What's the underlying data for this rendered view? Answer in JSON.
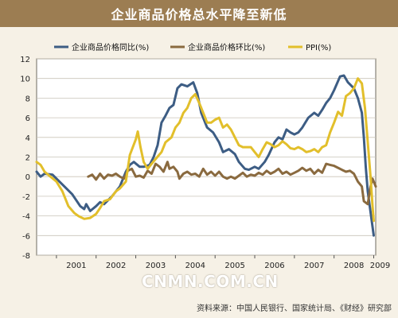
{
  "header": {
    "title": "企业商品价格总水平降至新低"
  },
  "source_text": "资料来源：中国人民银行、国家统计局、《财经》研究部",
  "watermark_text": "CNMN.COM.CN",
  "colors": {
    "header_bg": "#9c7d52",
    "background": "#f6f1e6",
    "plot_bg": "#ffffff",
    "series_yoy": "#3d5d84",
    "series_mom": "#8a6a3f",
    "series_ppi": "#e2bf2b"
  },
  "chart_data": {
    "type": "line",
    "ylim": [
      -8,
      12
    ],
    "yticks": [
      "-8",
      "-6",
      "-4",
      "-2",
      "0",
      "2",
      "4",
      "6",
      "8",
      "10",
      "12"
    ],
    "xlim": [
      2000.5,
      2009.05
    ],
    "xtick_labels": [
      {
        "label": "2001",
        "x": 2001.0
      },
      {
        "label": "2002",
        "x": 2002.0
      },
      {
        "label": "2003",
        "x": 2003.0
      },
      {
        "label": "2004",
        "x": 2004.0
      },
      {
        "label": "2005",
        "x": 2005.0
      },
      {
        "label": "2006",
        "x": 2006.0
      },
      {
        "label": "2007",
        "x": 2007.0
      },
      {
        "label": "2008",
        "x": 2008.0
      },
      {
        "label": "2009",
        "x": 2009.0
      }
    ],
    "grid": "horizontal",
    "legend_placement": "top",
    "series": [
      {
        "name": "企业商品价格同比(%)",
        "color_key": "series_yoy",
        "points": [
          [
            2000.5,
            0.5
          ],
          [
            2000.6,
            0.0
          ],
          [
            2000.7,
            0.3
          ],
          [
            2000.9,
            0.2
          ],
          [
            2001.0,
            -0.2
          ],
          [
            2001.2,
            -1.0
          ],
          [
            2001.4,
            -1.8
          ],
          [
            2001.6,
            -3.0
          ],
          [
            2001.7,
            -3.3
          ],
          [
            2001.75,
            -2.8
          ],
          [
            2001.85,
            -3.5
          ],
          [
            2002.0,
            -3.0
          ],
          [
            2002.1,
            -2.6
          ],
          [
            2002.2,
            -2.8
          ],
          [
            2002.4,
            -2.0
          ],
          [
            2002.6,
            -1.0
          ],
          [
            2002.75,
            0.5
          ],
          [
            2002.85,
            1.2
          ],
          [
            2002.95,
            1.5
          ],
          [
            2003.1,
            1.0
          ],
          [
            2003.2,
            1.0
          ],
          [
            2003.35,
            1.2
          ],
          [
            2003.45,
            2.0
          ],
          [
            2003.55,
            3.2
          ],
          [
            2003.65,
            5.5
          ],
          [
            2003.75,
            6.2
          ],
          [
            2003.85,
            7.0
          ],
          [
            2003.95,
            7.3
          ],
          [
            2004.05,
            9.0
          ],
          [
            2004.15,
            9.4
          ],
          [
            2004.3,
            9.2
          ],
          [
            2004.45,
            9.6
          ],
          [
            2004.55,
            8.5
          ],
          [
            2004.65,
            6.5
          ],
          [
            2004.8,
            5.0
          ],
          [
            2004.95,
            4.5
          ],
          [
            2005.1,
            3.5
          ],
          [
            2005.2,
            2.5
          ],
          [
            2005.35,
            2.8
          ],
          [
            2005.5,
            2.3
          ],
          [
            2005.6,
            1.5
          ],
          [
            2005.75,
            0.8
          ],
          [
            2005.85,
            0.7
          ],
          [
            2006.0,
            1.0
          ],
          [
            2006.1,
            0.8
          ],
          [
            2006.25,
            1.5
          ],
          [
            2006.35,
            2.2
          ],
          [
            2006.5,
            3.5
          ],
          [
            2006.6,
            4.0
          ],
          [
            2006.7,
            3.8
          ],
          [
            2006.8,
            4.8
          ],
          [
            2006.9,
            4.5
          ],
          [
            2007.0,
            4.3
          ],
          [
            2007.1,
            4.5
          ],
          [
            2007.2,
            5.0
          ],
          [
            2007.35,
            6.0
          ],
          [
            2007.5,
            6.5
          ],
          [
            2007.6,
            6.2
          ],
          [
            2007.7,
            6.8
          ],
          [
            2007.8,
            7.5
          ],
          [
            2007.9,
            8.0
          ],
          [
            2008.0,
            8.8
          ],
          [
            2008.15,
            10.2
          ],
          [
            2008.25,
            10.3
          ],
          [
            2008.35,
            9.6
          ],
          [
            2008.5,
            9.0
          ],
          [
            2008.6,
            8.0
          ],
          [
            2008.7,
            6.5
          ],
          [
            2008.75,
            4.0
          ],
          [
            2008.8,
            1.0
          ],
          [
            2008.85,
            -1.5
          ],
          [
            2008.9,
            -3.0
          ],
          [
            2008.95,
            -4.5
          ],
          [
            2009.0,
            -6.0
          ]
        ]
      },
      {
        "name": "企业商品价格环比(%)",
        "color_key": "series_mom",
        "points": [
          [
            2001.8,
            0.0
          ],
          [
            2001.9,
            0.2
          ],
          [
            2002.0,
            -0.3
          ],
          [
            2002.1,
            0.3
          ],
          [
            2002.2,
            -0.2
          ],
          [
            2002.3,
            0.2
          ],
          [
            2002.4,
            0.1
          ],
          [
            2002.5,
            0.3
          ],
          [
            2002.6,
            0.0
          ],
          [
            2002.7,
            -0.2
          ],
          [
            2002.8,
            0.6
          ],
          [
            2002.9,
            0.8
          ],
          [
            2003.0,
            0.0
          ],
          [
            2003.1,
            0.1
          ],
          [
            2003.2,
            -0.1
          ],
          [
            2003.3,
            0.6
          ],
          [
            2003.4,
            0.3
          ],
          [
            2003.5,
            1.3
          ],
          [
            2003.6,
            1.0
          ],
          [
            2003.7,
            0.5
          ],
          [
            2003.8,
            1.5
          ],
          [
            2003.85,
            0.8
          ],
          [
            2003.95,
            1.0
          ],
          [
            2004.05,
            0.5
          ],
          [
            2004.1,
            -0.2
          ],
          [
            2004.2,
            0.3
          ],
          [
            2004.3,
            0.5
          ],
          [
            2004.4,
            0.2
          ],
          [
            2004.5,
            0.3
          ],
          [
            2004.6,
            0.0
          ],
          [
            2004.7,
            0.8
          ],
          [
            2004.8,
            0.2
          ],
          [
            2004.9,
            0.5
          ],
          [
            2005.0,
            0.1
          ],
          [
            2005.1,
            0.5
          ],
          [
            2005.2,
            0.0
          ],
          [
            2005.3,
            -0.2
          ],
          [
            2005.4,
            0.0
          ],
          [
            2005.5,
            -0.2
          ],
          [
            2005.6,
            0.1
          ],
          [
            2005.7,
            0.4
          ],
          [
            2005.8,
            0.0
          ],
          [
            2005.9,
            0.2
          ],
          [
            2006.0,
            0.1
          ],
          [
            2006.1,
            0.4
          ],
          [
            2006.2,
            0.2
          ],
          [
            2006.3,
            0.6
          ],
          [
            2006.4,
            0.3
          ],
          [
            2006.5,
            0.5
          ],
          [
            2006.6,
            0.8
          ],
          [
            2006.7,
            0.3
          ],
          [
            2006.8,
            0.5
          ],
          [
            2006.9,
            0.2
          ],
          [
            2007.0,
            0.4
          ],
          [
            2007.1,
            0.6
          ],
          [
            2007.2,
            0.9
          ],
          [
            2007.3,
            0.6
          ],
          [
            2007.4,
            0.8
          ],
          [
            2007.5,
            0.3
          ],
          [
            2007.6,
            0.7
          ],
          [
            2007.7,
            0.4
          ],
          [
            2007.8,
            1.3
          ],
          [
            2007.9,
            1.2
          ],
          [
            2008.0,
            1.1
          ],
          [
            2008.1,
            0.9
          ],
          [
            2008.2,
            0.7
          ],
          [
            2008.3,
            0.5
          ],
          [
            2008.4,
            0.6
          ],
          [
            2008.5,
            0.3
          ],
          [
            2008.6,
            -0.5
          ],
          [
            2008.7,
            -1.0
          ],
          [
            2008.75,
            -2.5
          ],
          [
            2008.85,
            -2.8
          ],
          [
            2008.92,
            -1.0
          ],
          [
            2008.97,
            -0.2
          ],
          [
            2009.05,
            -1.0
          ]
        ]
      },
      {
        "name": "PPI(%)",
        "color_key": "series_ppi",
        "points": [
          [
            2000.5,
            1.5
          ],
          [
            2000.6,
            1.2
          ],
          [
            2000.7,
            0.5
          ],
          [
            2000.85,
            0.0
          ],
          [
            2001.0,
            -0.5
          ],
          [
            2001.15,
            -1.5
          ],
          [
            2001.3,
            -3.0
          ],
          [
            2001.45,
            -3.7
          ],
          [
            2001.55,
            -4.0
          ],
          [
            2001.7,
            -4.3
          ],
          [
            2001.85,
            -4.2
          ],
          [
            2002.0,
            -3.8
          ],
          [
            2002.1,
            -3.2
          ],
          [
            2002.2,
            -2.5
          ],
          [
            2002.35,
            -2.3
          ],
          [
            2002.5,
            -1.5
          ],
          [
            2002.6,
            -1.2
          ],
          [
            2002.75,
            -0.5
          ],
          [
            2002.85,
            2.2
          ],
          [
            2003.0,
            3.8
          ],
          [
            2003.05,
            4.6
          ],
          [
            2003.12,
            3.0
          ],
          [
            2003.2,
            1.5
          ],
          [
            2003.3,
            0.8
          ],
          [
            2003.4,
            1.3
          ],
          [
            2003.5,
            1.8
          ],
          [
            2003.65,
            2.5
          ],
          [
            2003.75,
            3.5
          ],
          [
            2003.9,
            4.0
          ],
          [
            2004.0,
            5.0
          ],
          [
            2004.1,
            5.5
          ],
          [
            2004.2,
            6.5
          ],
          [
            2004.3,
            7.0
          ],
          [
            2004.4,
            8.0
          ],
          [
            2004.5,
            8.4
          ],
          [
            2004.6,
            7.5
          ],
          [
            2004.7,
            6.5
          ],
          [
            2004.8,
            5.5
          ],
          [
            2004.9,
            5.5
          ],
          [
            2005.0,
            5.8
          ],
          [
            2005.1,
            6.0
          ],
          [
            2005.2,
            5.0
          ],
          [
            2005.3,
            5.3
          ],
          [
            2005.4,
            4.8
          ],
          [
            2005.5,
            4.0
          ],
          [
            2005.6,
            3.2
          ],
          [
            2005.7,
            3.0
          ],
          [
            2005.8,
            3.0
          ],
          [
            2005.9,
            3.0
          ],
          [
            2006.0,
            2.5
          ],
          [
            2006.1,
            2.0
          ],
          [
            2006.2,
            2.8
          ],
          [
            2006.3,
            3.5
          ],
          [
            2006.4,
            3.3
          ],
          [
            2006.5,
            3.0
          ],
          [
            2006.6,
            3.2
          ],
          [
            2006.7,
            3.6
          ],
          [
            2006.8,
            3.3
          ],
          [
            2006.9,
            2.9
          ],
          [
            2007.0,
            2.8
          ],
          [
            2007.1,
            3.0
          ],
          [
            2007.2,
            2.8
          ],
          [
            2007.3,
            2.5
          ],
          [
            2007.4,
            2.6
          ],
          [
            2007.5,
            2.8
          ],
          [
            2007.6,
            2.5
          ],
          [
            2007.7,
            3.0
          ],
          [
            2007.8,
            3.2
          ],
          [
            2007.9,
            4.5
          ],
          [
            2008.0,
            5.5
          ],
          [
            2008.1,
            6.6
          ],
          [
            2008.2,
            6.2
          ],
          [
            2008.3,
            8.2
          ],
          [
            2008.4,
            8.5
          ],
          [
            2008.5,
            9.0
          ],
          [
            2008.6,
            10.0
          ],
          [
            2008.7,
            9.5
          ],
          [
            2008.78,
            7.0
          ],
          [
            2008.85,
            3.5
          ],
          [
            2008.92,
            0.0
          ],
          [
            2008.97,
            -3.0
          ],
          [
            2009.0,
            -4.5
          ]
        ]
      }
    ]
  }
}
